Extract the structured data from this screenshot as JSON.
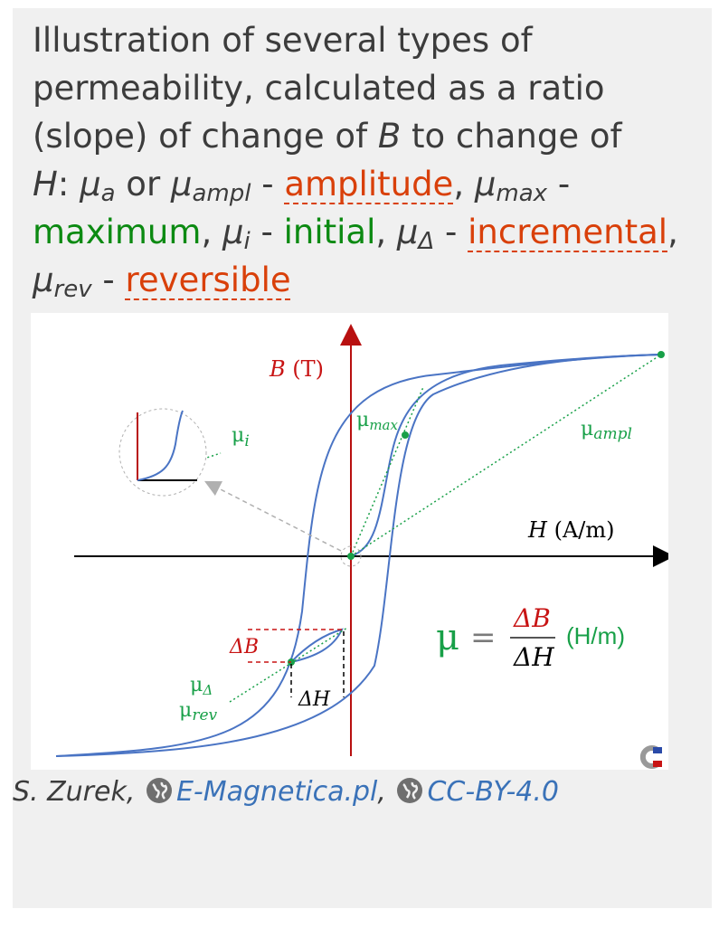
{
  "caption": {
    "line1": "Illustration of several types of",
    "line2": "permeability, calculated as a ratio",
    "line3_pre": "(slope) of change of ",
    "line3_B": "B",
    "line3_mid": " to change of",
    "H": "H",
    "colon": ": ",
    "mu": "μ",
    "sub_a": "a",
    "or": " or ",
    "sub_ampl": "ampl",
    "dash": " - ",
    "amplitude": "amplitude",
    "comma": ", ",
    "sub_max": "max",
    "maximum": "maximum",
    "sub_i": "i",
    "initial": "initial",
    "sub_delta": "Δ",
    "incremental": "incremental",
    "sub_rev": "rev",
    "reversible": "reversible"
  },
  "figure": {
    "b_axis": "B",
    "b_unit": "(T)",
    "h_axis": "H",
    "h_unit": "(A/m)",
    "mu_max": "μ",
    "mu_max_sub": "max",
    "mu_ampl": "μ",
    "mu_ampl_sub": "ampl",
    "mu_i": "μ",
    "mu_i_sub": "i",
    "mu_delta": "μ",
    "mu_delta_sub": "Δ",
    "mu_rev": "μ",
    "mu_rev_sub": "rev",
    "delta_b": "ΔB",
    "delta_h": "ΔH",
    "formula_mu": "μ",
    "formula_eq": "=",
    "formula_num": "ΔB",
    "formula_den": "ΔH",
    "formula_unit": "(H/m)",
    "colors": {
      "curve": "#4a74c4",
      "axis_b": "#b81010",
      "green": "#18a048",
      "red": "#c81414",
      "grey": "#b0b0b0"
    }
  },
  "credit": {
    "author": "S. Zurek,",
    "site": "E-Magnetica.pl",
    "sep": ",",
    "license": "CC-BY-4.0",
    "icon": "globe-icon"
  }
}
